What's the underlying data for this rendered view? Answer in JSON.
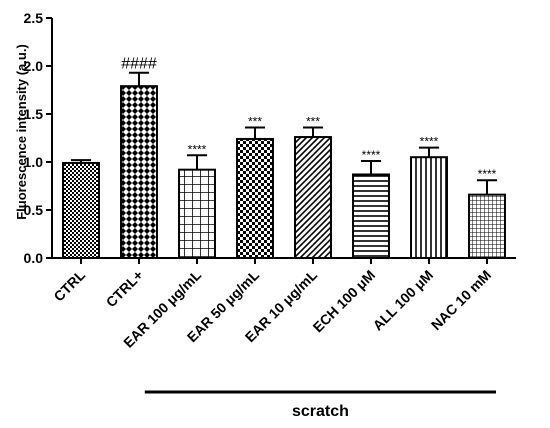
{
  "chart_data": {
    "type": "bar",
    "title": "",
    "xlabel": "",
    "ylabel": "Fluorescence intensity (a.u.)",
    "ylim": [
      0,
      2.5
    ],
    "yticks": [
      "0.0",
      "0.5",
      "1.0",
      "1.5",
      "2.0",
      "2.5"
    ],
    "categories": [
      "CTRL",
      "CTRL+",
      "EAR 100 μg/mL",
      "EAR 50 μg/mL",
      "EAR 10 μg/mL",
      "ECH 100  μM",
      "ALL 100  μM",
      "NAC 10 mM"
    ],
    "values": [
      0.99,
      1.79,
      0.92,
      1.24,
      1.26,
      0.87,
      1.05,
      0.66
    ],
    "errors": [
      0.03,
      0.14,
      0.15,
      0.12,
      0.1,
      0.14,
      0.1,
      0.15
    ],
    "patterns": [
      "dense-dots",
      "checker",
      "grid",
      "checker-large",
      "diagonal",
      "horizontal",
      "vertical",
      "fine-grid"
    ],
    "annotations": [
      "",
      "####",
      "****",
      "***",
      "***",
      "****",
      "****",
      "****"
    ],
    "group_label": "scratch",
    "grid": false
  }
}
